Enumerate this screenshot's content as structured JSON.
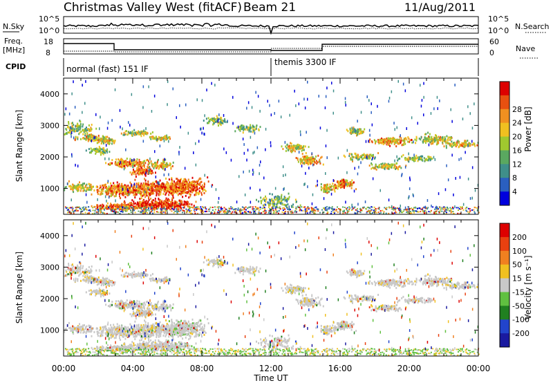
{
  "header": {
    "title": "Christmas Valley West (fitACF)",
    "beam": "Beam 21",
    "date": "11/Aug/2011"
  },
  "noise_panel": {
    "left_label": "N.Sky",
    "right_label": "N.Search",
    "left_ticks": [
      "10^5",
      "10^0"
    ],
    "right_ticks": [
      "10^5",
      "10^0"
    ]
  },
  "freq_panel": {
    "left_label_1": "Freq.",
    "left_label_2": "[MHz]",
    "right_label": "Nave",
    "left_ticks": [
      "18",
      "8"
    ],
    "right_ticks": [
      "60",
      "0"
    ]
  },
  "cpid": {
    "label": "CPID",
    "segments": [
      {
        "name": "normal (fast) 151 IF",
        "start_hour": 0,
        "end_hour": 12
      },
      {
        "name": "themis 3300 IF",
        "start_hour": 12,
        "end_hour": 24
      }
    ]
  },
  "chart_data": [
    {
      "type": "heatmap",
      "quantity": "power",
      "ylabel": "Slant Range [km]",
      "xlabel": "Time UT",
      "x_range_hours": [
        0,
        24
      ],
      "ylim": [
        180,
        4500
      ],
      "yticks": [
        1000,
        2000,
        3000,
        4000
      ],
      "xticks": [
        "00:00",
        "04:00",
        "08:00",
        "12:00",
        "16:00",
        "20:00",
        "00:00"
      ],
      "colorbar": {
        "label": "Power [dB]",
        "ticks": [
          "4",
          "8",
          "12",
          "16",
          "20",
          "24",
          "28"
        ],
        "colors": [
          "#0000dd",
          "#2a5fc0",
          "#3f8f8a",
          "#5aa860",
          "#a0c82f",
          "#f0c020",
          "#f09020",
          "#e85010",
          "#dd0000"
        ]
      }
    },
    {
      "type": "heatmap",
      "quantity": "velocity",
      "ylabel": "Slant Range [km]",
      "xlabel": "Time UT",
      "x_range_hours": [
        0,
        24
      ],
      "ylim": [
        180,
        4500
      ],
      "yticks": [
        1000,
        2000,
        3000,
        4000
      ],
      "xticks": [
        "00:00",
        "04:00",
        "08:00",
        "12:00",
        "16:00",
        "20:00",
        "00:00"
      ],
      "colorbar": {
        "label": "Velocity [m s⁻¹]",
        "ticks": [
          "200",
          "100",
          "50",
          "15",
          "-15",
          "-50",
          "-100",
          "-200"
        ],
        "colors": [
          "#1a1aa0",
          "#2244cc",
          "#208020",
          "#60c040",
          "#c8c8c8",
          "#f0c020",
          "#f08020",
          "#e84010",
          "#dd0000"
        ]
      }
    }
  ],
  "axis": {
    "xlabel": "Time UT",
    "ylabel": "Slant Range [km]"
  }
}
